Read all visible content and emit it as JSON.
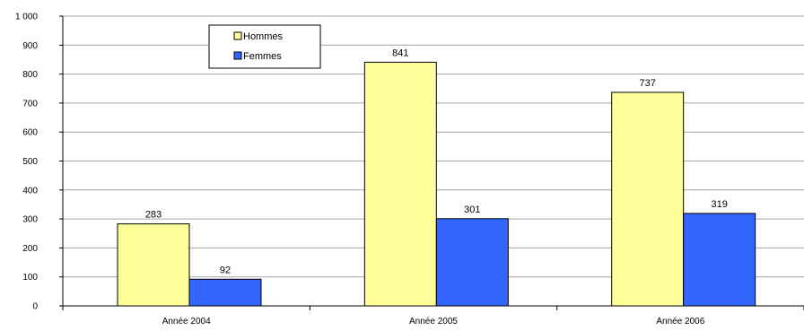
{
  "chart_data": {
    "type": "bar",
    "categories": [
      "Année 2004",
      "Année 2005",
      "Année 2006"
    ],
    "series": [
      {
        "name": "Hommes",
        "values": [
          283,
          841,
          737
        ],
        "color": "#ffff99"
      },
      {
        "name": "Femmes",
        "values": [
          92,
          301,
          319
        ],
        "color": "#3366ff"
      }
    ],
    "ylim": [
      0,
      1000
    ],
    "yticks": [
      0,
      100,
      200,
      300,
      400,
      500,
      600,
      700,
      800,
      900,
      1000
    ],
    "ytick_labels": [
      "0",
      "100",
      "200",
      "300",
      "400",
      "500",
      "600",
      "700",
      "800",
      "900",
      "1 000"
    ],
    "grid": true,
    "legend_position": "top-left",
    "data_labels": true,
    "title": "",
    "xlabel": "",
    "ylabel": ""
  }
}
